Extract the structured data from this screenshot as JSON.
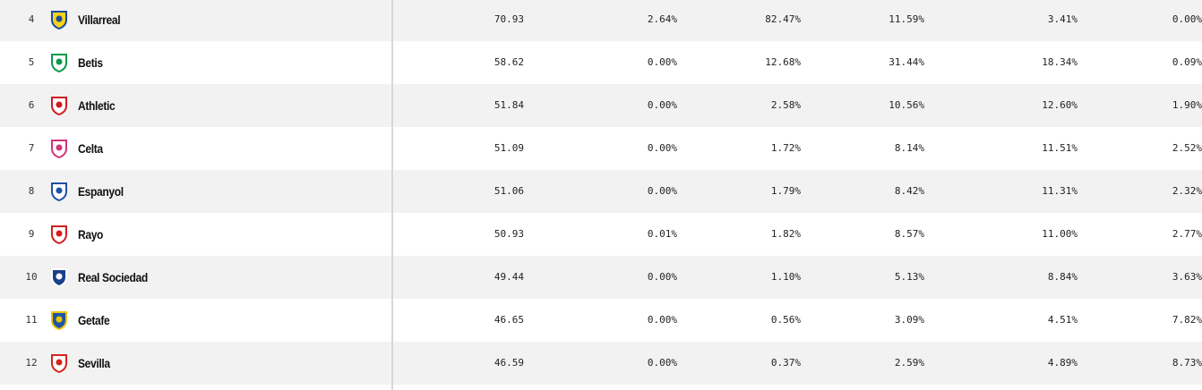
{
  "table": {
    "rows": [
      {
        "rank": "4",
        "team": "Villarreal",
        "values": [
          "70.93",
          "2.64%",
          "82.47%",
          "11.59%",
          "3.41%",
          "0.00%"
        ]
      },
      {
        "rank": "5",
        "team": "Betis",
        "values": [
          "58.62",
          "0.00%",
          "12.68%",
          "31.44%",
          "18.34%",
          "0.09%"
        ]
      },
      {
        "rank": "6",
        "team": "Athletic",
        "values": [
          "51.84",
          "0.00%",
          "2.58%",
          "10.56%",
          "12.60%",
          "1.90%"
        ]
      },
      {
        "rank": "7",
        "team": "Celta",
        "values": [
          "51.09",
          "0.00%",
          "1.72%",
          "8.14%",
          "11.51%",
          "2.52%"
        ]
      },
      {
        "rank": "8",
        "team": "Espanyol",
        "values": [
          "51.06",
          "0.00%",
          "1.79%",
          "8.42%",
          "11.31%",
          "2.32%"
        ]
      },
      {
        "rank": "9",
        "team": "Rayo",
        "values": [
          "50.93",
          "0.01%",
          "1.82%",
          "8.57%",
          "11.00%",
          "2.77%"
        ]
      },
      {
        "rank": "10",
        "team": "Real Sociedad",
        "values": [
          "49.44",
          "0.00%",
          "1.10%",
          "5.13%",
          "8.84%",
          "3.63%"
        ]
      },
      {
        "rank": "11",
        "team": "Getafe",
        "values": [
          "46.65",
          "0.00%",
          "0.56%",
          "3.09%",
          "4.51%",
          "7.82%"
        ]
      },
      {
        "rank": "12",
        "team": "Sevilla",
        "values": [
          "46.59",
          "0.00%",
          "0.37%",
          "2.59%",
          "4.89%",
          "8.73%"
        ]
      }
    ]
  }
}
